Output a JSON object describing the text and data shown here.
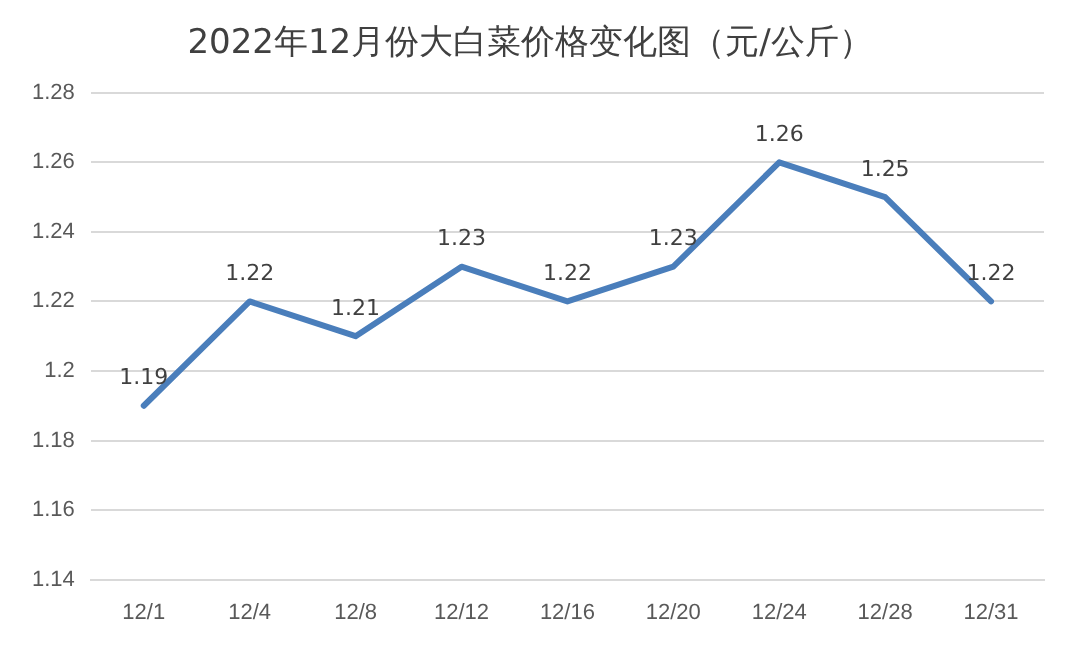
{
  "chart_data": {
    "type": "line",
    "title": "2022年12月份大白菜价格变化图（元/公斤）",
    "categories": [
      "12/1",
      "12/4",
      "12/8",
      "12/12",
      "12/16",
      "12/20",
      "12/24",
      "12/28",
      "12/31"
    ],
    "series": [
      {
        "color": "#4a7ebb",
        "values": [
          1.19,
          1.22,
          1.21,
          1.23,
          1.22,
          1.23,
          1.26,
          1.25,
          1.22
        ]
      }
    ],
    "ylim": [
      1.14,
      1.28
    ],
    "yticks": [
      1.14,
      1.16,
      1.18,
      1.2,
      1.22,
      1.24,
      1.26,
      1.28
    ],
    "grid": "y",
    "legend": false,
    "marker": "none",
    "line_style": "solid",
    "data_labels": true
  }
}
